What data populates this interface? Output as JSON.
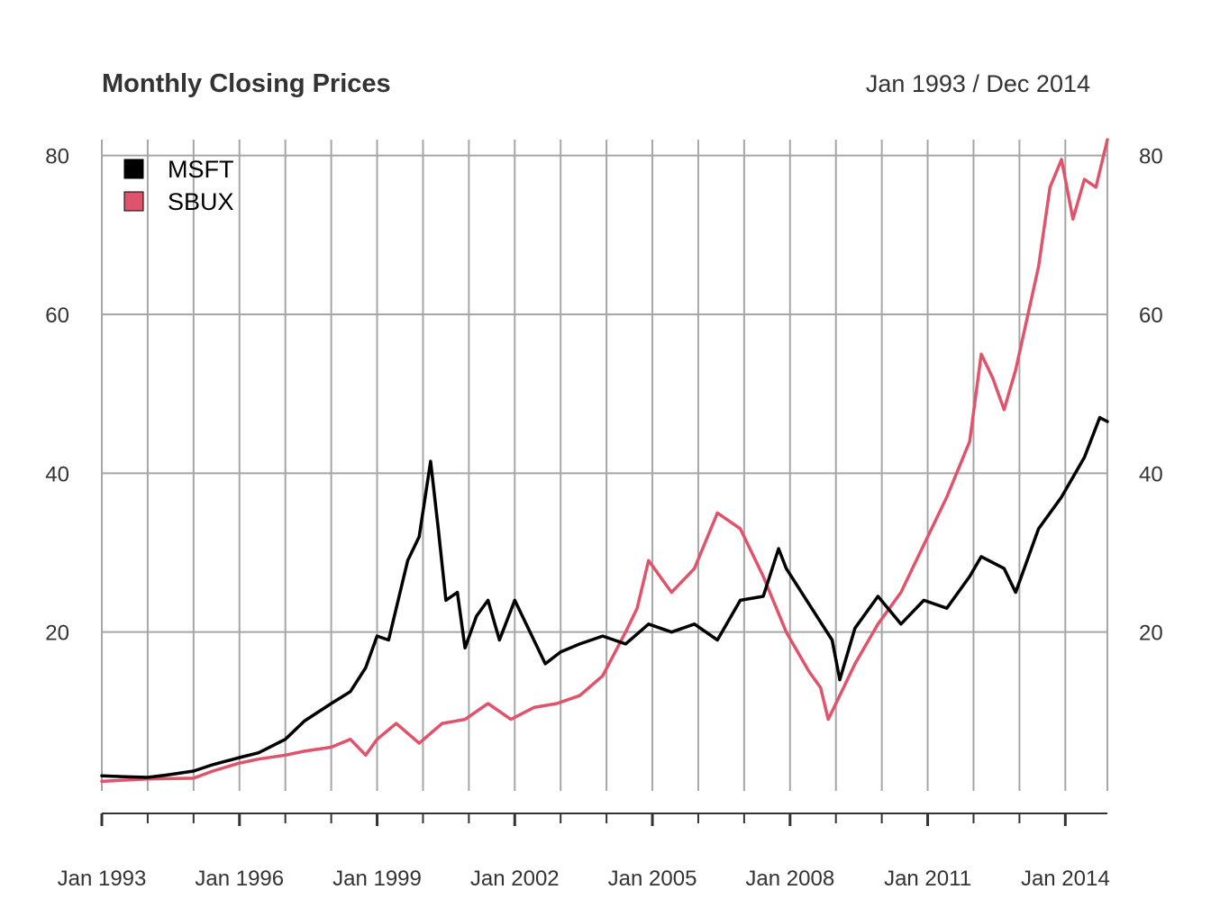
{
  "chart_data": {
    "type": "line",
    "title": "Monthly Closing Prices",
    "date_range_label": "Jan 1993 / Dec 2014",
    "x_range": [
      "1993-01",
      "2014-12"
    ],
    "ylim": [
      0,
      82
    ],
    "y_ticks": [
      20,
      40,
      60,
      80
    ],
    "y_tick_labels": [
      "20",
      "40",
      "60",
      "80"
    ],
    "x_tick_labels": [
      "Jan 1993",
      "Jan 1996",
      "Jan 1999",
      "Jan 2002",
      "Jan 2005",
      "Jan 2008",
      "Jan 2011",
      "Jan 2014"
    ],
    "grid": true,
    "legend_position": "top-left",
    "series": [
      {
        "name": "MSFT",
        "color": "#000000",
        "points": [
          [
            "1993-01",
            1.9
          ],
          [
            "1993-06",
            1.8
          ],
          [
            "1994-01",
            1.7
          ],
          [
            "1994-06",
            2.0
          ],
          [
            "1995-01",
            2.5
          ],
          [
            "1995-06",
            3.3
          ],
          [
            "1996-01",
            4.2
          ],
          [
            "1996-06",
            4.8
          ],
          [
            "1997-01",
            6.5
          ],
          [
            "1997-06",
            8.8
          ],
          [
            "1998-01",
            11.0
          ],
          [
            "1998-06",
            12.5
          ],
          [
            "1998-10",
            15.5
          ],
          [
            "1999-01",
            19.5
          ],
          [
            "1999-04",
            19.0
          ],
          [
            "1999-07",
            25.0
          ],
          [
            "1999-09",
            29.0
          ],
          [
            "1999-12",
            32.0
          ],
          [
            "2000-03",
            41.5
          ],
          [
            "2000-05",
            33.0
          ],
          [
            "2000-07",
            24.0
          ],
          [
            "2000-10",
            25.0
          ],
          [
            "2000-12",
            18.0
          ],
          [
            "2001-03",
            22.0
          ],
          [
            "2001-06",
            24.0
          ],
          [
            "2001-09",
            19.0
          ],
          [
            "2002-01",
            24.0
          ],
          [
            "2002-06",
            19.0
          ],
          [
            "2002-09",
            16.0
          ],
          [
            "2003-01",
            17.5
          ],
          [
            "2003-06",
            18.5
          ],
          [
            "2003-12",
            19.5
          ],
          [
            "2004-06",
            18.5
          ],
          [
            "2004-12",
            21.0
          ],
          [
            "2005-06",
            20.0
          ],
          [
            "2005-12",
            21.0
          ],
          [
            "2006-06",
            19.0
          ],
          [
            "2006-12",
            24.0
          ],
          [
            "2007-06",
            24.5
          ],
          [
            "2007-10",
            30.5
          ],
          [
            "2007-12",
            28.0
          ],
          [
            "2008-06",
            23.5
          ],
          [
            "2008-12",
            19.0
          ],
          [
            "2009-02",
            14.0
          ],
          [
            "2009-06",
            20.5
          ],
          [
            "2009-12",
            24.5
          ],
          [
            "2010-06",
            21.0
          ],
          [
            "2010-12",
            24.0
          ],
          [
            "2011-06",
            23.0
          ],
          [
            "2011-12",
            27.0
          ],
          [
            "2012-03",
            29.5
          ],
          [
            "2012-09",
            28.0
          ],
          [
            "2012-12",
            25.0
          ],
          [
            "2013-06",
            33.0
          ],
          [
            "2013-12",
            37.0
          ],
          [
            "2014-06",
            42.0
          ],
          [
            "2014-10",
            47.0
          ],
          [
            "2014-12",
            46.5
          ]
        ]
      },
      {
        "name": "SBUX",
        "color": "#DF536B",
        "points": [
          [
            "1993-01",
            1.2
          ],
          [
            "1994-01",
            1.5
          ],
          [
            "1995-01",
            1.6
          ],
          [
            "1995-06",
            2.5
          ],
          [
            "1996-01",
            3.5
          ],
          [
            "1996-06",
            4.0
          ],
          [
            "1997-01",
            4.5
          ],
          [
            "1997-06",
            5.0
          ],
          [
            "1998-01",
            5.5
          ],
          [
            "1998-06",
            6.5
          ],
          [
            "1998-10",
            4.5
          ],
          [
            "1999-01",
            6.5
          ],
          [
            "1999-06",
            8.5
          ],
          [
            "1999-12",
            6.0
          ],
          [
            "2000-06",
            8.5
          ],
          [
            "2000-12",
            9.0
          ],
          [
            "2001-06",
            11.0
          ],
          [
            "2001-12",
            9.0
          ],
          [
            "2002-06",
            10.5
          ],
          [
            "2002-12",
            11.0
          ],
          [
            "2003-06",
            12.0
          ],
          [
            "2003-12",
            14.5
          ],
          [
            "2004-06",
            20.0
          ],
          [
            "2004-09",
            23.0
          ],
          [
            "2004-12",
            29.0
          ],
          [
            "2005-06",
            25.0
          ],
          [
            "2005-12",
            28.0
          ],
          [
            "2006-06",
            35.0
          ],
          [
            "2006-09",
            34.0
          ],
          [
            "2006-12",
            33.0
          ],
          [
            "2007-06",
            27.0
          ],
          [
            "2007-12",
            20.0
          ],
          [
            "2008-06",
            15.0
          ],
          [
            "2008-09",
            13.0
          ],
          [
            "2008-11",
            9.0
          ],
          [
            "2009-03",
            13.0
          ],
          [
            "2009-06",
            16.0
          ],
          [
            "2009-12",
            21.0
          ],
          [
            "2010-06",
            25.0
          ],
          [
            "2010-12",
            31.0
          ],
          [
            "2011-06",
            37.0
          ],
          [
            "2011-12",
            44.0
          ],
          [
            "2012-03",
            55.0
          ],
          [
            "2012-06",
            52.0
          ],
          [
            "2012-09",
            48.0
          ],
          [
            "2012-12",
            53.0
          ],
          [
            "2013-06",
            66.0
          ],
          [
            "2013-09",
            76.0
          ],
          [
            "2013-12",
            79.5
          ],
          [
            "2014-03",
            72.0
          ],
          [
            "2014-06",
            77.0
          ],
          [
            "2014-09",
            76.0
          ],
          [
            "2014-12",
            82.0
          ]
        ]
      }
    ]
  }
}
